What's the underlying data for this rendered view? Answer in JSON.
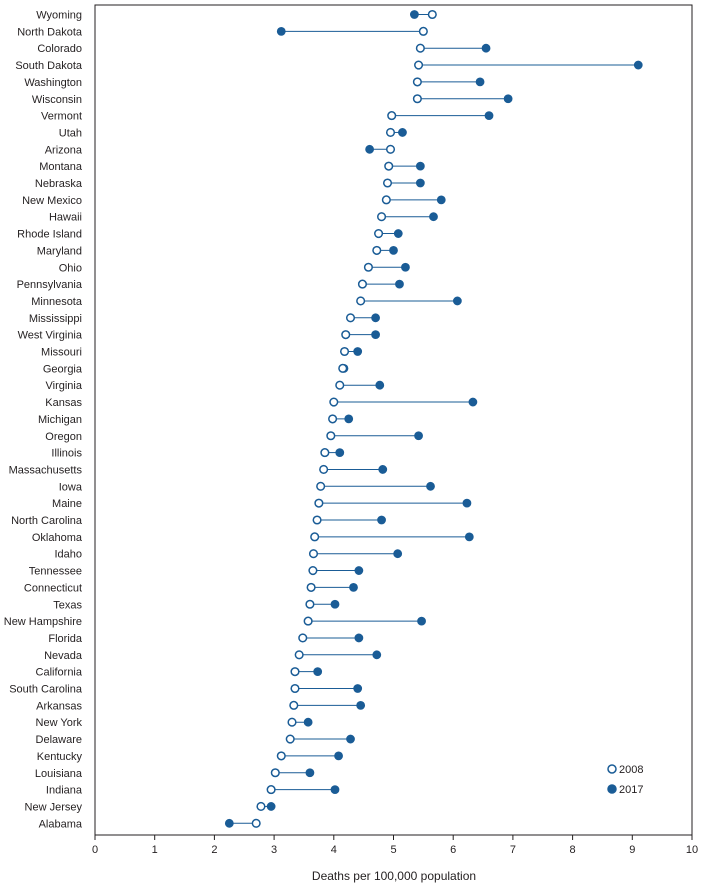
{
  "chart_data": {
    "type": "dumbbell",
    "title": "",
    "xlabel": "Deaths per 100,000 population",
    "ylabel": "",
    "xlim": [
      0,
      10
    ],
    "xticks": [
      "0",
      "1",
      "2",
      "3",
      "4",
      "5",
      "6",
      "7",
      "8",
      "9",
      "10"
    ],
    "legend_position": "bottom-right",
    "colors": {
      "series_2008": "#ffffff",
      "series_2017": "#1a5c96",
      "stroke": "#1a5c96",
      "line": "#1a5c96",
      "axis": "#231f20"
    },
    "series": [
      {
        "name": "2008",
        "marker": "open-circle"
      },
      {
        "name": "2017",
        "marker": "filled-circle"
      }
    ],
    "states": [
      "Wyoming",
      "North Dakota",
      "Colorado",
      "South Dakota",
      "Washington",
      "Wisconsin",
      "Vermont",
      "Utah",
      "Arizona",
      "Montana",
      "Nebraska",
      "New Mexico",
      "Hawaii",
      "Rhode Island",
      "Maryland",
      "Ohio",
      "Pennsylvania",
      "Minnesota",
      "Mississippi",
      "West Virginia",
      "Missouri",
      "Georgia",
      "Virginia",
      "Kansas",
      "Michigan",
      "Oregon",
      "Illinois",
      "Massachusetts",
      "Iowa",
      "Maine",
      "North Carolina",
      "Oklahoma",
      "Idaho",
      "Tennessee",
      "Connecticut",
      "Texas",
      "New Hampshire",
      "Florida",
      "Nevada",
      "California",
      "South Carolina",
      "Arkansas",
      "New York",
      "Delaware",
      "Kentucky",
      "Louisiana",
      "Indiana",
      "New Jersey",
      "Alabama"
    ],
    "values_2008": [
      5.65,
      5.5,
      5.45,
      5.42,
      5.4,
      5.4,
      4.97,
      4.95,
      4.95,
      4.92,
      4.9,
      4.88,
      4.8,
      4.75,
      4.72,
      4.58,
      4.48,
      4.45,
      4.28,
      4.2,
      4.18,
      4.15,
      4.1,
      4.0,
      3.98,
      3.95,
      3.85,
      3.83,
      3.78,
      3.75,
      3.72,
      3.68,
      3.66,
      3.65,
      3.62,
      3.6,
      3.57,
      3.48,
      3.42,
      3.35,
      3.35,
      3.33,
      3.3,
      3.27,
      3.12,
      3.02,
      2.95,
      2.78,
      2.7
    ],
    "values_2017": [
      5.35,
      3.12,
      6.55,
      9.1,
      6.45,
      6.92,
      6.6,
      5.15,
      4.6,
      5.45,
      5.45,
      5.8,
      5.67,
      5.08,
      5.0,
      5.2,
      5.1,
      6.07,
      4.7,
      4.7,
      4.4,
      4.17,
      4.77,
      6.33,
      4.25,
      5.42,
      4.1,
      4.82,
      5.62,
      6.23,
      4.8,
      6.27,
      5.07,
      4.42,
      4.33,
      4.02,
      5.47,
      4.42,
      4.72,
      3.73,
      4.4,
      4.45,
      3.57,
      4.28,
      4.08,
      3.6,
      4.02,
      2.95,
      2.25
    ]
  }
}
